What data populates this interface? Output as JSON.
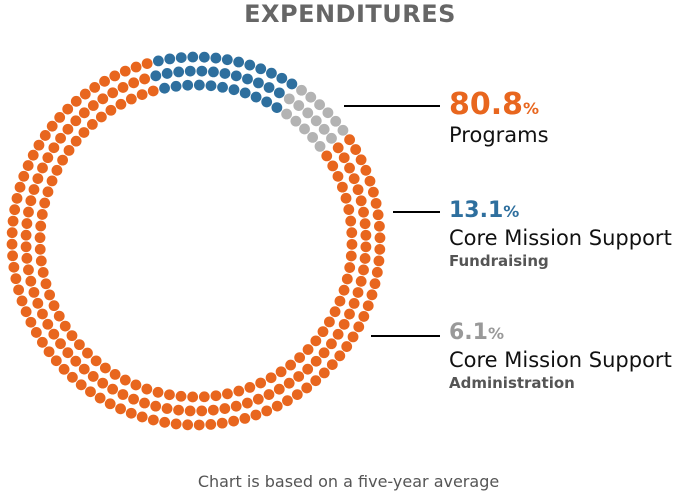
{
  "chart_data": {
    "type": "pie",
    "title": "EXPENDITURES",
    "percent_symbol": "%",
    "slices": [
      {
        "value": 80.8,
        "label": "80.8",
        "category": "Programs",
        "subcategory": "",
        "color": "#e8661e"
      },
      {
        "value": 13.1,
        "label": "13.1",
        "category": "Core Mission Support",
        "subcategory": "Fundraising",
        "color": "#2e6f9e"
      },
      {
        "value": 6.1,
        "label": "6.1",
        "category": "Core Mission Support",
        "subcategory": "Administration",
        "color": "#b3b3b3"
      }
    ],
    "footnote": "Chart is based on a five-year average"
  }
}
